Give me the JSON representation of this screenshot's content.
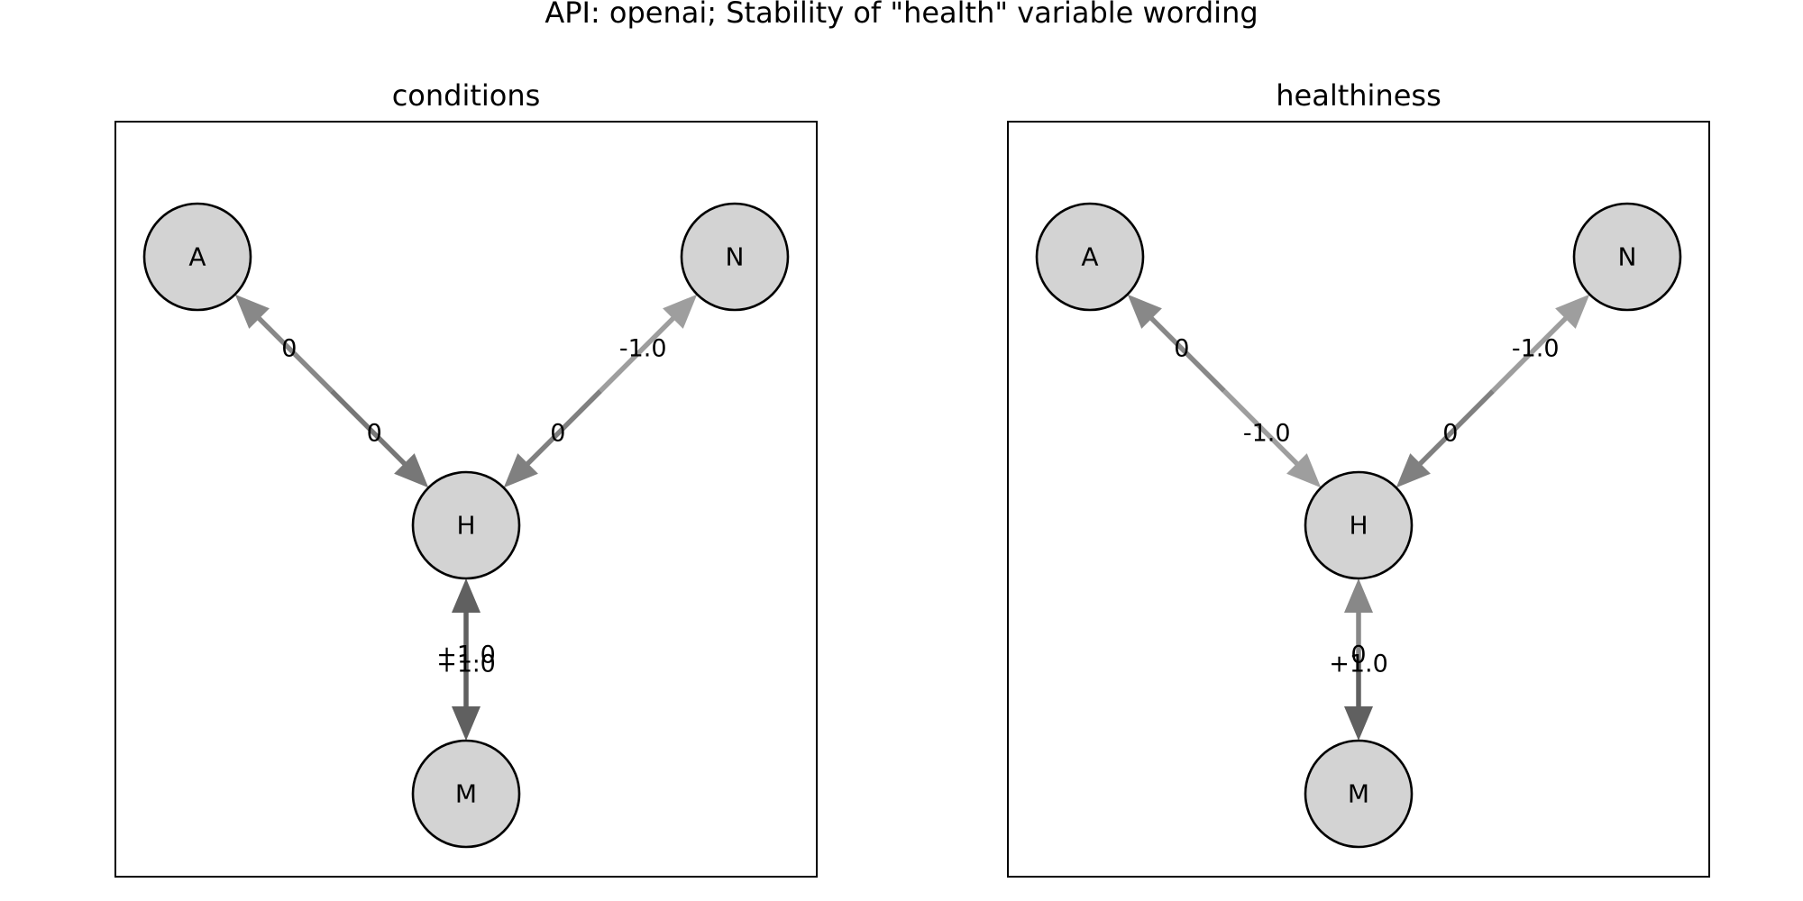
{
  "title": "API: openai; Stability of \"health\" variable wording",
  "style": {
    "node_fill": "#d3d3d3",
    "node_stroke": "#000000"
  },
  "panels": [
    {
      "title": "conditions",
      "nodes": [
        {
          "id": "A",
          "label": "A"
        },
        {
          "id": "N",
          "label": "N"
        },
        {
          "id": "H",
          "label": "H"
        },
        {
          "id": "M",
          "label": "M"
        }
      ],
      "edges": [
        {
          "from": "A",
          "to": "H",
          "label_from": "0",
          "label_to": "0",
          "color_from": "#888888",
          "color_to": "#777777"
        },
        {
          "from": "N",
          "to": "H",
          "label_from": "-1.0",
          "label_to": "0",
          "color_from": "#9e9e9e",
          "color_to": "#808080"
        },
        {
          "from": "M",
          "to": "H",
          "label_from": "+1.0",
          "label_to": "+1.0",
          "color_from": "#606060",
          "color_to": "#606060"
        }
      ]
    },
    {
      "title": "healthiness",
      "nodes": [
        {
          "id": "A",
          "label": "A"
        },
        {
          "id": "N",
          "label": "N"
        },
        {
          "id": "H",
          "label": "H"
        },
        {
          "id": "M",
          "label": "M"
        }
      ],
      "edges": [
        {
          "from": "A",
          "to": "H",
          "label_from": "0",
          "label_to": "-1.0",
          "color_from": "#888888",
          "color_to": "#9e9e9e"
        },
        {
          "from": "N",
          "to": "H",
          "label_from": "-1.0",
          "label_to": "0",
          "color_from": "#9e9e9e",
          "color_to": "#808080"
        },
        {
          "from": "M",
          "to": "H",
          "label_from": "+1.0",
          "label_to": "0",
          "color_from": "#606060",
          "color_to": "#888888"
        }
      ]
    }
  ]
}
